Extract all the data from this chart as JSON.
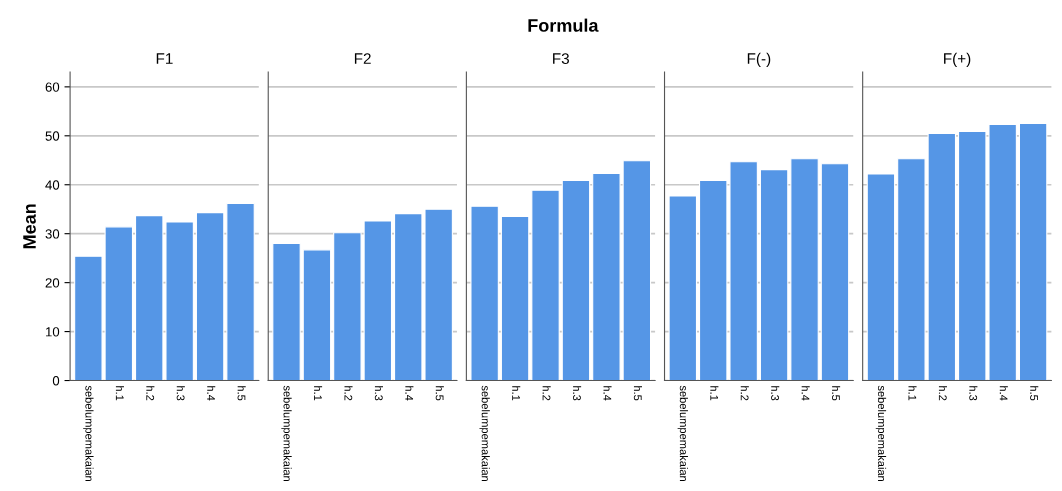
{
  "chart_data": [
    {
      "type": "bar",
      "title": "F1",
      "annotations": [
        "Formula"
      ],
      "ylabel": "Mean",
      "categories": [
        "sebelumpemakaian",
        "h.1",
        "h.2",
        "h.3",
        "h.4",
        "h.5"
      ],
      "values": [
        25.4,
        31.4,
        33.7,
        32.4,
        34.3,
        36.2
      ],
      "color": "#5596e6",
      "ylim": [
        0,
        63
      ],
      "yticks": [
        0,
        10,
        20,
        30,
        40,
        50,
        60
      ],
      "grid": "y"
    },
    {
      "type": "bar",
      "title": "F2",
      "categories": [
        "sebelumpemakaian",
        "h.1",
        "h.2",
        "h.3",
        "h.4",
        "h.5"
      ],
      "values": [
        28.0,
        26.7,
        30.2,
        32.6,
        34.1,
        35.0
      ],
      "color": "#5596e6",
      "ylim": [
        0,
        63
      ],
      "yticks": [
        0,
        10,
        20,
        30,
        40,
        50,
        60
      ],
      "grid": "y",
      "tick_labels": "x"
    },
    {
      "type": "bar",
      "title": "F3",
      "categories": [
        "sebelumpemakaian",
        "h.1",
        "h.2",
        "h.3",
        "h.4",
        "h.5"
      ],
      "values": [
        35.6,
        33.5,
        38.9,
        40.9,
        42.3,
        44.9
      ],
      "color": "#5596e6",
      "ylim": [
        0,
        63
      ],
      "yticks": [
        0,
        10,
        20,
        30,
        40,
        50,
        60
      ],
      "grid": "y",
      "tick_labels": "x"
    },
    {
      "type": "bar",
      "title": "F(-)",
      "categories": [
        "sebelumpemakaian",
        "h.1",
        "h.2",
        "h.3",
        "h.4",
        "h.5"
      ],
      "values": [
        37.7,
        40.9,
        44.7,
        43.1,
        45.3,
        44.3
      ],
      "color": "#5596e6",
      "ylim": [
        0,
        63
      ],
      "yticks": [
        0,
        10,
        20,
        30,
        40,
        50,
        60
      ],
      "grid": "y",
      "tick_labels": "x"
    },
    {
      "type": "bar",
      "title": "F(+)",
      "categories": [
        "sebelumpemakaian",
        "h.1",
        "h.2",
        "h.3",
        "h.4",
        "h.5"
      ],
      "values": [
        42.2,
        45.3,
        50.5,
        50.9,
        52.3,
        52.5
      ],
      "color": "#5596e6",
      "ylim": [
        0,
        63
      ],
      "yticks": [
        0,
        10,
        20,
        30,
        40,
        50,
        60
      ],
      "grid": "y",
      "tick_labels": "x"
    }
  ]
}
